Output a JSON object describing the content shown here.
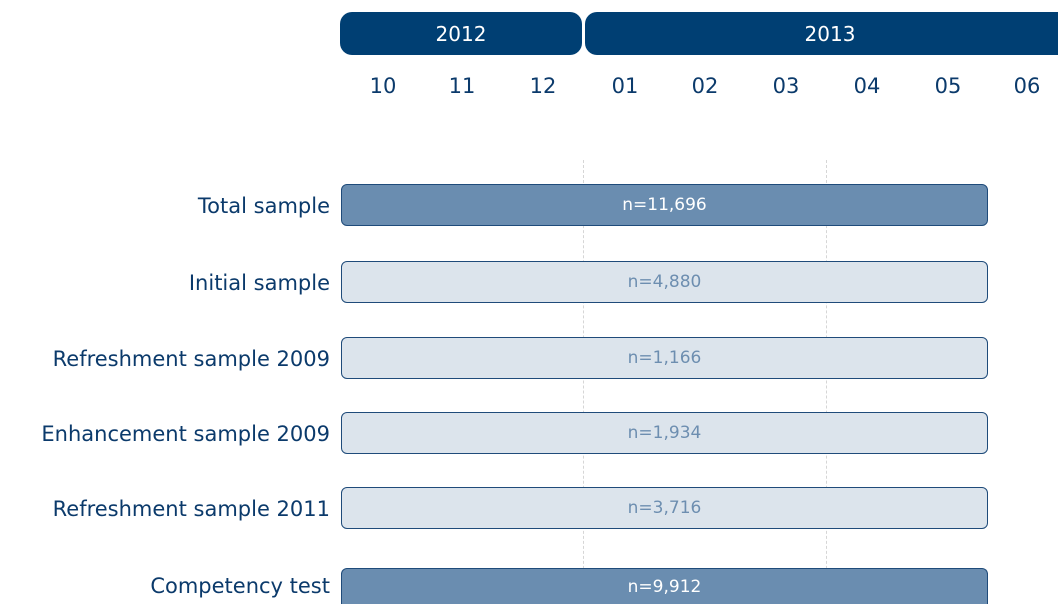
{
  "years": [
    "2012",
    "2013"
  ],
  "months": [
    "10",
    "11",
    "12",
    "01",
    "02",
    "03",
    "04",
    "05",
    "06"
  ],
  "rows": [
    {
      "label": "Total sample",
      "n": "n=11,696"
    },
    {
      "label": "Initial sample",
      "n": "n=4,880"
    },
    {
      "label": "Refreshment sample 2009",
      "n": "n=1,166"
    },
    {
      "label": "Enhancement sample 2009",
      "n": "n=1,934"
    },
    {
      "label": "Refreshment sample 2011",
      "n": "n=3,716"
    },
    {
      "label": "Competency test",
      "n": "n=9,912"
    }
  ]
}
